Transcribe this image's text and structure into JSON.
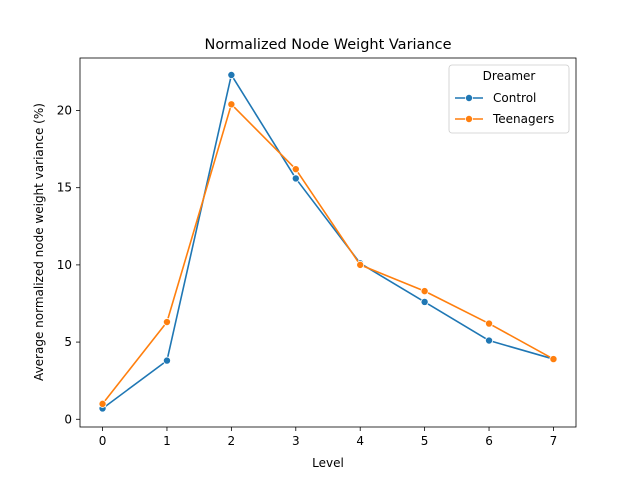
{
  "chart_data": {
    "type": "line",
    "title": "Normalized Node Weight Variance",
    "xlabel": "Level",
    "ylabel": "Average normalized node weight variance (%)",
    "x": [
      0,
      1,
      2,
      3,
      4,
      5,
      6,
      7
    ],
    "xticks": [
      0,
      1,
      2,
      3,
      4,
      5,
      6,
      7
    ],
    "yticks": [
      0,
      5,
      10,
      15,
      20
    ],
    "xlim": [
      -0.35,
      7.35
    ],
    "ylim": [
      -0.5,
      23.4
    ],
    "legend": {
      "title": "Dreamer",
      "placement": "top-right"
    },
    "series": [
      {
        "name": "Control",
        "color": "#1f77b4",
        "values": [
          0.7,
          3.8,
          22.3,
          15.6,
          10.1,
          7.6,
          5.1,
          3.9
        ]
      },
      {
        "name": "Teenagers",
        "color": "#ff7f0e",
        "values": [
          1.0,
          6.3,
          20.4,
          16.2,
          10.0,
          8.3,
          6.2,
          3.9
        ]
      }
    ]
  }
}
